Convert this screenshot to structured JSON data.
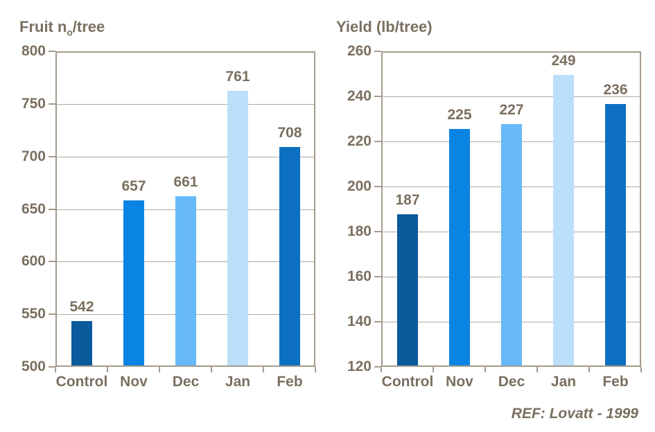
{
  "palette": {
    "page_background": "#ffffff",
    "text": "#7a6f60",
    "axis": "#a59b8d",
    "grid": "#b2a99c",
    "bar_colors": [
      "#0a5a9c",
      "#0a84e2",
      "#67b9f7",
      "#bcdff9",
      "#0d70c0"
    ]
  },
  "footer": {
    "ref_label": "REF: Lovatt - 1999"
  },
  "chart_data": [
    {
      "type": "bar",
      "title": "Fruit no/tree",
      "title_segments": [
        {
          "text": "Fruit n"
        },
        {
          "text": "o",
          "subscript": true
        },
        {
          "text": "/tree"
        }
      ],
      "categories": [
        "Control",
        "Nov",
        "Dec",
        "Jan",
        "Feb"
      ],
      "values": [
        542,
        657,
        661,
        761,
        708
      ],
      "ylim": [
        500,
        800
      ],
      "yticks": [
        500,
        550,
        600,
        650,
        700,
        750,
        800
      ],
      "grid": true,
      "legend": false,
      "value_labels": true
    },
    {
      "type": "bar",
      "title": "Yield (lb/tree)",
      "title_segments": [
        {
          "text": "Yield (lb/tree)"
        }
      ],
      "categories": [
        "Control",
        "Nov",
        "Dec",
        "Jan",
        "Feb"
      ],
      "values": [
        187,
        225,
        227,
        249,
        236
      ],
      "ylim": [
        120,
        260
      ],
      "yticks": [
        120,
        140,
        160,
        180,
        200,
        220,
        240,
        260
      ],
      "grid": true,
      "legend": false,
      "value_labels": true
    }
  ]
}
